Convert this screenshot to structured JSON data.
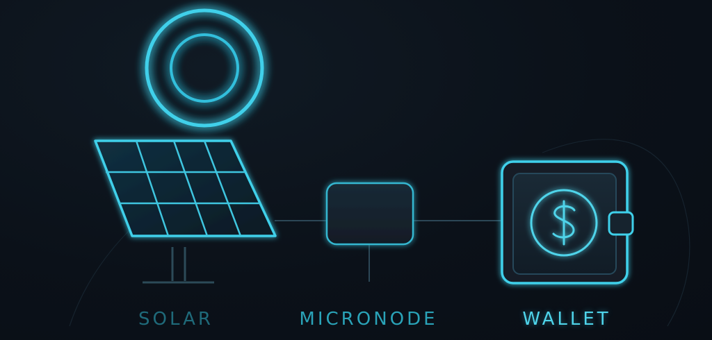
{
  "nodes": [
    {
      "id": "solar",
      "label": "SOLAR",
      "icon": "solar-panel-icon"
    },
    {
      "id": "micronode",
      "label": "MICRONODE",
      "icon": "device-box-icon"
    },
    {
      "id": "wallet",
      "label": "WALLET",
      "icon": "wallet-icon"
    }
  ],
  "decor": {
    "sun_icon": "sun-icon",
    "currency_icon": "dollar-coin-icon"
  },
  "colors": {
    "background": "#0b1119",
    "accent": "#3fd0ea",
    "stroke_dim": "#1c3a48",
    "label_solar": "#1f6a7a",
    "label_micronode": "#2aa3b8",
    "label_wallet": "#4fd4ea"
  }
}
